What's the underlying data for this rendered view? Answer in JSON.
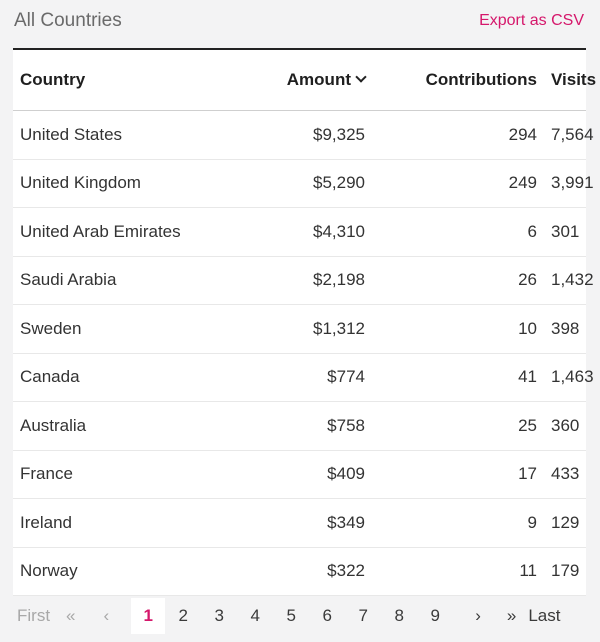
{
  "header": {
    "title": "All Countries",
    "export_label": "Export as CSV"
  },
  "table": {
    "columns": {
      "country": "Country",
      "amount": "Amount",
      "contributions": "Contributions",
      "visits": "Visits"
    },
    "sort": {
      "column": "amount",
      "direction": "descending",
      "icon": "chevron-down-icon"
    },
    "rows": [
      {
        "country": "United States",
        "amount": "$9,325",
        "contributions": "294",
        "visits": "7,564"
      },
      {
        "country": "United Kingdom",
        "amount": "$5,290",
        "contributions": "249",
        "visits": "3,991"
      },
      {
        "country": "United Arab Emirates",
        "amount": "$4,310",
        "contributions": "6",
        "visits": "301"
      },
      {
        "country": "Saudi Arabia",
        "amount": "$2,198",
        "contributions": "26",
        "visits": "1,432"
      },
      {
        "country": "Sweden",
        "amount": "$1,312",
        "contributions": "10",
        "visits": "398"
      },
      {
        "country": "Canada",
        "amount": "$774",
        "contributions": "41",
        "visits": "1,463"
      },
      {
        "country": "Australia",
        "amount": "$758",
        "contributions": "25",
        "visits": "360"
      },
      {
        "country": "France",
        "amount": "$409",
        "contributions": "17",
        "visits": "433"
      },
      {
        "country": "Ireland",
        "amount": "$349",
        "contributions": "9",
        "visits": "129"
      },
      {
        "country": "Norway",
        "amount": "$322",
        "contributions": "11",
        "visits": "179"
      }
    ]
  },
  "pagination": {
    "first": "First",
    "prev_prev": "«",
    "prev": "‹",
    "pages": [
      "1",
      "2",
      "3",
      "4",
      "5",
      "6",
      "7",
      "8",
      "9"
    ],
    "current": "1",
    "next": "›",
    "next_next": "»",
    "last": "Last"
  },
  "colors": {
    "accent": "#d5176b",
    "background": "#f3f3f4",
    "table_background": "#ffffff"
  }
}
